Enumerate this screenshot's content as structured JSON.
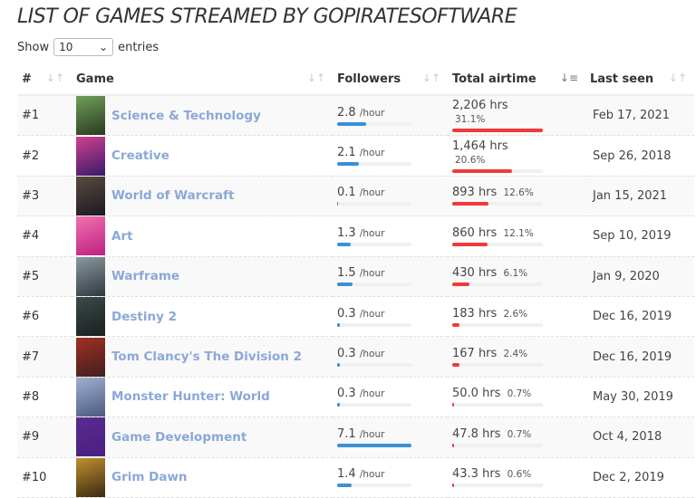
{
  "title": "LIST OF GAMES STREAMED BY GOPIRATESOFTWARE",
  "length": {
    "show": "Show",
    "value": "10",
    "entries": "entries"
  },
  "columns": [
    "#",
    "Game",
    "Followers",
    "Total airtime",
    "Last seen"
  ],
  "colors": {
    "followers_bar": "#3a8fd6",
    "airtime_bar": "#f03a3a",
    "link": "#8aa8d8"
  },
  "max_followers": 7.1,
  "max_hours": 2206,
  "rows": [
    {
      "rank": "#1",
      "game": "Science & Technology",
      "followers": "2.8",
      "followers_value": 2.8,
      "followers_unit": "/hour",
      "airtime": "2,206 hrs",
      "hours": 2206,
      "pct": "31.1%",
      "last_seen": "Feb 17, 2021",
      "thumb": [
        "#2a3a20",
        "#6fa05a"
      ]
    },
    {
      "rank": "#2",
      "game": "Creative",
      "followers": "2.1",
      "followers_value": 2.1,
      "followers_unit": "/hour",
      "airtime": "1,464 hrs",
      "hours": 1464,
      "pct": "20.6%",
      "last_seen": "Sep 26, 2018",
      "thumb": [
        "#3a1a6a",
        "#d04090"
      ]
    },
    {
      "rank": "#3",
      "game": "World of Warcraft",
      "followers": "0.1",
      "followers_value": 0.1,
      "followers_unit": "/hour",
      "airtime": "893 hrs",
      "hours": 893,
      "pct": "12.6%",
      "last_seen": "Jan 15, 2021",
      "thumb": [
        "#1a1a22",
        "#5a4a40"
      ]
    },
    {
      "rank": "#4",
      "game": "Art",
      "followers": "1.3",
      "followers_value": 1.3,
      "followers_unit": "/hour",
      "airtime": "860 hrs",
      "hours": 860,
      "pct": "12.1%",
      "last_seen": "Sep 10, 2019",
      "thumb": [
        "#c02080",
        "#f070b0"
      ]
    },
    {
      "rank": "#5",
      "game": "Warframe",
      "followers": "1.5",
      "followers_value": 1.5,
      "followers_unit": "/hour",
      "airtime": "430 hrs",
      "hours": 430,
      "pct": "6.1%",
      "last_seen": "Jan 9, 2020",
      "thumb": [
        "#30383e",
        "#8a9aa0"
      ]
    },
    {
      "rank": "#6",
      "game": "Destiny 2",
      "followers": "0.3",
      "followers_value": 0.3,
      "followers_unit": "/hour",
      "airtime": "183 hrs",
      "hours": 183,
      "pct": "2.6%",
      "last_seen": "Dec 16, 2019",
      "thumb": [
        "#1a2020",
        "#3a4a48"
      ]
    },
    {
      "rank": "#7",
      "game": "Tom Clancy's The Division 2",
      "followers": "0.3",
      "followers_value": 0.3,
      "followers_unit": "/hour",
      "airtime": "167 hrs",
      "hours": 167,
      "pct": "2.4%",
      "last_seen": "Dec 16, 2019",
      "thumb": [
        "#402020",
        "#a03020"
      ]
    },
    {
      "rank": "#8",
      "game": "Monster Hunter: World",
      "followers": "0.3",
      "followers_value": 0.3,
      "followers_unit": "/hour",
      "airtime": "50.0 hrs",
      "hours": 50,
      "pct": "0.7%",
      "last_seen": "May 30, 2019",
      "thumb": [
        "#4a5a80",
        "#a0b0d0"
      ]
    },
    {
      "rank": "#9",
      "game": "Game Development",
      "followers": "7.1",
      "followers_value": 7.1,
      "followers_unit": "/hour",
      "airtime": "47.8 hrs",
      "hours": 47.8,
      "pct": "0.7%",
      "last_seen": "Oct 4, 2018",
      "thumb": [
        "#4a2080",
        "#5a2a90"
      ]
    },
    {
      "rank": "#10",
      "game": "Grim Dawn",
      "followers": "1.4",
      "followers_value": 1.4,
      "followers_unit": "/hour",
      "airtime": "43.3 hrs",
      "hours": 43.3,
      "pct": "0.6%",
      "last_seen": "Dec 2, 2019",
      "thumb": [
        "#3a2a10",
        "#c09030"
      ]
    }
  ]
}
